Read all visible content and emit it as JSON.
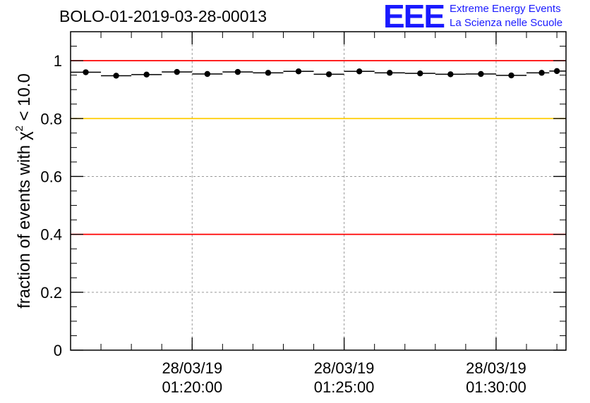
{
  "header": {
    "title": "BOLO-01-2019-03-28-00013"
  },
  "logo": {
    "mark": "EEE",
    "line1": "Extreme Energy Events",
    "line2": "La Scienza nelle Scuole",
    "color": "#1a1aff"
  },
  "chart_data": {
    "type": "scatter",
    "title": "BOLO-01-2019-03-28-00013",
    "xlabel": "",
    "ylabel_prefix": "fraction of events with ",
    "ylabel_symbol": "χ",
    "ylabel_sup": "2",
    "ylabel_suffix": " < 10.0",
    "ylim": [
      0,
      1.1
    ],
    "xlim_minutes": [
      16.0,
      32.3
    ],
    "x_unit": "minutes after 28/03/19 01:00:00",
    "yticks": [
      {
        "v": 0,
        "label": "0"
      },
      {
        "v": 0.2,
        "label": "0.2"
      },
      {
        "v": 0.4,
        "label": "0.4"
      },
      {
        "v": 0.6,
        "label": "0.6"
      },
      {
        "v": 0.8,
        "label": "0.8"
      },
      {
        "v": 1.0,
        "label": "1"
      }
    ],
    "xticks": [
      {
        "t": 20,
        "date": "28/03/19",
        "time": "01:20:00"
      },
      {
        "t": 25,
        "date": "28/03/19",
        "time": "01:25:00"
      },
      {
        "t": 30,
        "date": "28/03/19",
        "time": "01:30:00"
      }
    ],
    "grid": true,
    "reference_lines": [
      {
        "y": 1.0,
        "color": "#ff0000"
      },
      {
        "y": 0.8,
        "color": "#ffcc00"
      },
      {
        "y": 0.4,
        "color": "#ff0000"
      }
    ],
    "series": [
      {
        "marker_color": "#000000",
        "x": [
          16.5,
          17.5,
          18.5,
          19.5,
          20.5,
          21.5,
          22.5,
          23.5,
          24.5,
          25.5,
          26.5,
          27.5,
          28.5,
          29.5,
          30.5,
          31.5,
          32.0
        ],
        "y": [
          0.96,
          0.948,
          0.952,
          0.961,
          0.954,
          0.961,
          0.958,
          0.963,
          0.953,
          0.963,
          0.958,
          0.956,
          0.953,
          0.954,
          0.949,
          0.958,
          0.964
        ]
      }
    ]
  }
}
